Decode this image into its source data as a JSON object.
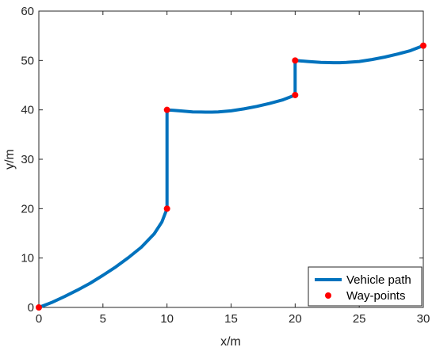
{
  "chart_data": {
    "type": "line",
    "title": "",
    "xlabel": "x/m",
    "ylabel": "y/m",
    "xlim": [
      0,
      30
    ],
    "ylim": [
      0,
      60
    ],
    "xticks": [
      0,
      5,
      10,
      15,
      20,
      25,
      30
    ],
    "yticks": [
      0,
      10,
      20,
      30,
      40,
      50,
      60
    ],
    "xtick_labels": [
      "0",
      "5",
      "10",
      "15",
      "20",
      "25",
      "30"
    ],
    "ytick_labels": [
      "0",
      "10",
      "20",
      "30",
      "40",
      "50",
      "60"
    ],
    "grid": false,
    "legend_position": "bottom-right",
    "series": [
      {
        "name": "Vehicle path",
        "style": "line",
        "color": "#0072BD",
        "x": [
          0,
          1,
          2,
          3,
          4,
          5,
          6,
          7,
          8,
          9,
          9.6,
          10,
          10,
          10,
          10.5,
          11,
          12,
          13,
          13.5,
          14,
          15,
          16,
          17,
          18,
          19,
          19.6,
          20,
          20,
          20,
          20.5,
          21,
          22,
          23,
          23.5,
          24,
          25,
          26,
          27,
          28,
          29,
          29.6,
          30
        ],
        "y": [
          0,
          1.0,
          2.2,
          3.5,
          4.9,
          6.5,
          8.2,
          10.1,
          12.2,
          14.9,
          17.3,
          20,
          30,
          40,
          39.9,
          39.8,
          39.6,
          39.55,
          39.55,
          39.6,
          39.8,
          40.2,
          40.7,
          41.3,
          42.0,
          42.6,
          43,
          46.5,
          50,
          49.9,
          49.8,
          49.6,
          49.55,
          49.55,
          49.6,
          49.8,
          50.2,
          50.7,
          51.3,
          52.0,
          52.6,
          53
        ]
      },
      {
        "name": "Way-points",
        "style": "markers",
        "color": "#FF0000",
        "x": [
          0,
          10,
          10,
          20,
          20,
          30
        ],
        "y": [
          0,
          20,
          40,
          43,
          50,
          53
        ]
      }
    ]
  }
}
